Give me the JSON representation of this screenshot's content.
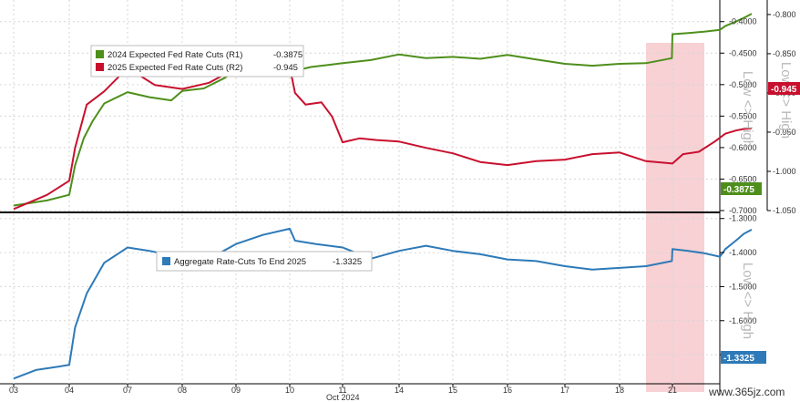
{
  "chart_data": [
    {
      "type": "line",
      "panel": "top",
      "title": "",
      "xlabel": "Oct 2024",
      "x_ticks": [
        "03",
        "04",
        "07",
        "08",
        "09",
        "10",
        "11",
        "14",
        "15",
        "16",
        "17",
        "18",
        "21"
      ],
      "axes": {
        "R1": {
          "side": "right",
          "ticks": [
            "-0.7000",
            "-0.6500",
            "-0.6000",
            "-0.5500",
            "-0.5000",
            "-0.4500",
            "-0.4000"
          ],
          "ylim": [
            -0.7,
            -0.37
          ],
          "label": "Low <> High"
        },
        "R2": {
          "side": "right",
          "ticks": [
            "-1.050",
            "-1.000",
            "-0.950",
            "-0.900",
            "-0.850",
            "-0.800"
          ],
          "ylim": [
            -1.05,
            -0.785
          ],
          "label": "Low <> High"
        }
      },
      "series": [
        {
          "name": "2024 Expected Fed Rate Cuts (R1)",
          "last": "-0.3875",
          "axis": "R1",
          "color": "#4e8f1c",
          "x": [
            0.0,
            0.6,
            1.0,
            1.1,
            1.25,
            1.4,
            1.6,
            2.0,
            2.4,
            2.8,
            3.0,
            3.4,
            3.8,
            4.0,
            4.5,
            5.0,
            5.1,
            5.4,
            5.8,
            6.0,
            6.5,
            7.0,
            7.5,
            8.0,
            8.5,
            9.0,
            9.5,
            10.0,
            10.5,
            11.0,
            11.5,
            11.99,
            12.0,
            12.3,
            12.6,
            12.9,
            13.0,
            13.2,
            13.35,
            13.5
          ],
          "values": [
            -0.692,
            -0.684,
            -0.675,
            -0.628,
            -0.585,
            -0.558,
            -0.53,
            -0.512,
            -0.52,
            -0.525,
            -0.51,
            -0.506,
            -0.489,
            -0.476,
            -0.473,
            -0.458,
            -0.478,
            -0.472,
            -0.468,
            -0.466,
            -0.461,
            -0.452,
            -0.458,
            -0.456,
            -0.459,
            -0.453,
            -0.46,
            -0.467,
            -0.47,
            -0.467,
            -0.466,
            -0.458,
            -0.42,
            -0.418,
            -0.416,
            -0.413,
            -0.407,
            -0.4,
            -0.394,
            -0.3875
          ]
        },
        {
          "name": "2025 Expected Fed Rate Cuts (R2)",
          "last": "-0.945",
          "axis": "R2",
          "color": "#c8102e",
          "x": [
            0.0,
            0.6,
            1.0,
            1.1,
            1.3,
            1.6,
            2.0,
            2.5,
            3.0,
            3.5,
            3.8,
            4.0,
            4.5,
            5.0,
            5.1,
            5.3,
            5.6,
            5.8,
            6.0,
            6.3,
            6.6,
            7.0,
            7.5,
            8.0,
            8.5,
            9.0,
            9.5,
            10.0,
            10.5,
            11.0,
            11.5,
            12.0,
            12.2,
            12.5,
            12.8,
            13.0,
            13.2,
            13.35,
            13.5
          ],
          "values": [
            -1.048,
            -1.03,
            -1.012,
            -0.97,
            -0.915,
            -0.898,
            -0.868,
            -0.89,
            -0.895,
            -0.887,
            -0.876,
            -0.866,
            -0.87,
            -0.867,
            -0.9,
            -0.915,
            -0.912,
            -0.93,
            -0.963,
            -0.958,
            -0.96,
            -0.962,
            -0.97,
            -0.977,
            -0.988,
            -0.992,
            -0.987,
            -0.985,
            -0.978,
            -0.976,
            -0.987,
            -0.99,
            -0.978,
            -0.975,
            -0.962,
            -0.952,
            -0.948,
            -0.946,
            -0.945
          ]
        }
      ]
    },
    {
      "type": "line",
      "panel": "bottom",
      "xlabel": "Oct 2024",
      "x_ticks": [
        "03",
        "04",
        "07",
        "08",
        "09",
        "10",
        "11",
        "14",
        "15",
        "16",
        "17",
        "18",
        "21"
      ],
      "axes": {
        "R1": {
          "side": "right",
          "ticks": [
            "-1.7000",
            "-1.6000",
            "-1.5000",
            "-1.4000",
            "-1.3000"
          ],
          "ylim": [
            -1.78,
            -1.29
          ],
          "label": "Low <> High"
        }
      },
      "series": [
        {
          "name": "Aggregate Rate-Cuts To End 2025",
          "last": "-1.3325",
          "axis": "R1",
          "color": "#2e7ab8",
          "x": [
            0.0,
            0.4,
            0.8,
            1.0,
            1.1,
            1.3,
            1.6,
            2.0,
            2.4,
            3.0,
            3.3,
            3.6,
            4.0,
            4.5,
            5.0,
            5.1,
            5.5,
            6.0,
            6.5,
            7.0,
            7.5,
            8.0,
            8.5,
            9.0,
            9.5,
            10.0,
            10.5,
            11.0,
            11.5,
            11.99,
            12.0,
            12.3,
            12.6,
            12.9,
            13.0,
            13.2,
            13.35,
            13.5
          ],
          "values": [
            -1.77,
            -1.745,
            -1.735,
            -1.73,
            -1.62,
            -1.52,
            -1.43,
            -1.385,
            -1.395,
            -1.415,
            -1.42,
            -1.41,
            -1.375,
            -1.348,
            -1.33,
            -1.365,
            -1.375,
            -1.385,
            -1.418,
            -1.395,
            -1.38,
            -1.395,
            -1.405,
            -1.42,
            -1.425,
            -1.44,
            -1.45,
            -1.445,
            -1.44,
            -1.425,
            -1.39,
            -1.395,
            -1.402,
            -1.412,
            -1.39,
            -1.365,
            -1.345,
            -1.3325
          ]
        }
      ]
    }
  ],
  "colors": {
    "highlight": "#f6c9cc",
    "badge_red": "#c8102e",
    "badge_green": "#4e8f1c",
    "badge_blue": "#2e7ab8"
  },
  "watermark": "www.365jz.com"
}
